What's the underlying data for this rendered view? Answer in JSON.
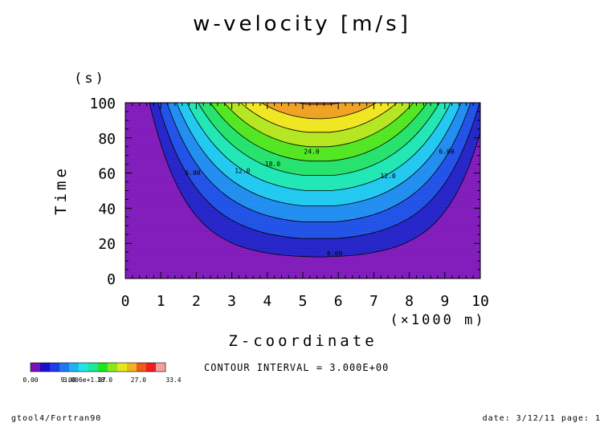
{
  "chart_data": {
    "type": "contour",
    "title": "w-velocity [m/s]",
    "xlabel": "Z-coordinate",
    "x_unit_label": "(×1000 m)",
    "ylabel": "Time",
    "y_unit_label": "(s)",
    "xlim": [
      0,
      10
    ],
    "ylim": [
      0,
      100
    ],
    "x_ticks": [
      "0",
      "1",
      "2",
      "3",
      "4",
      "5",
      "6",
      "7",
      "8",
      "9",
      "10"
    ],
    "y_ticks": [
      "0",
      "20",
      "40",
      "60",
      "80",
      "100"
    ],
    "contour_interval_label": "CONTOUR INTERVAL = 3.000E+00",
    "contour_interval": 3,
    "contour_labels": [
      {
        "text": "6.00",
        "level": 6,
        "x": 1.9,
        "y": 59
      },
      {
        "text": "6.00",
        "level": 6,
        "x": 5.9,
        "y": 13
      },
      {
        "text": "6.00",
        "level": 6,
        "x": 9.05,
        "y": 71
      },
      {
        "text": "12.0",
        "level": 12,
        "x": 3.3,
        "y": 60
      },
      {
        "text": "12.0",
        "level": 12,
        "x": 7.4,
        "y": 57
      },
      {
        "text": "18.0",
        "level": 18,
        "x": 4.15,
        "y": 64
      },
      {
        "text": "24.0",
        "level": 24,
        "x": 5.25,
        "y": 71
      }
    ],
    "colorbar": {
      "tick_labels": [
        "0.00",
        "9.00",
        "18.0",
        "27.0",
        "33.4"
      ],
      "overlap_text": "3.006e+1.87",
      "colors": [
        "#7a10b5",
        "#1a10cc",
        "#1e3ce8",
        "#1e78f0",
        "#1eb4f0",
        "#1ee6e6",
        "#1ee69a",
        "#1ee61e",
        "#8ce61e",
        "#e6e61e",
        "#f0b41e",
        "#f05a1e",
        "#f01e1e",
        "#f5a0a0"
      ]
    },
    "fill_colors": [
      "#7f18ba",
      "#2222c8",
      "#1e50e8",
      "#1e8cf0",
      "#1ec8f0",
      "#1ee6b4",
      "#22e26a",
      "#50e61e",
      "#b4e61e",
      "#f0e61e",
      "#f0a01e",
      "#f0501e",
      "#f01e1e"
    ]
  },
  "footer": {
    "left": "gtool4/Fortran90",
    "right": "date: 3/12/11 page: 1"
  }
}
